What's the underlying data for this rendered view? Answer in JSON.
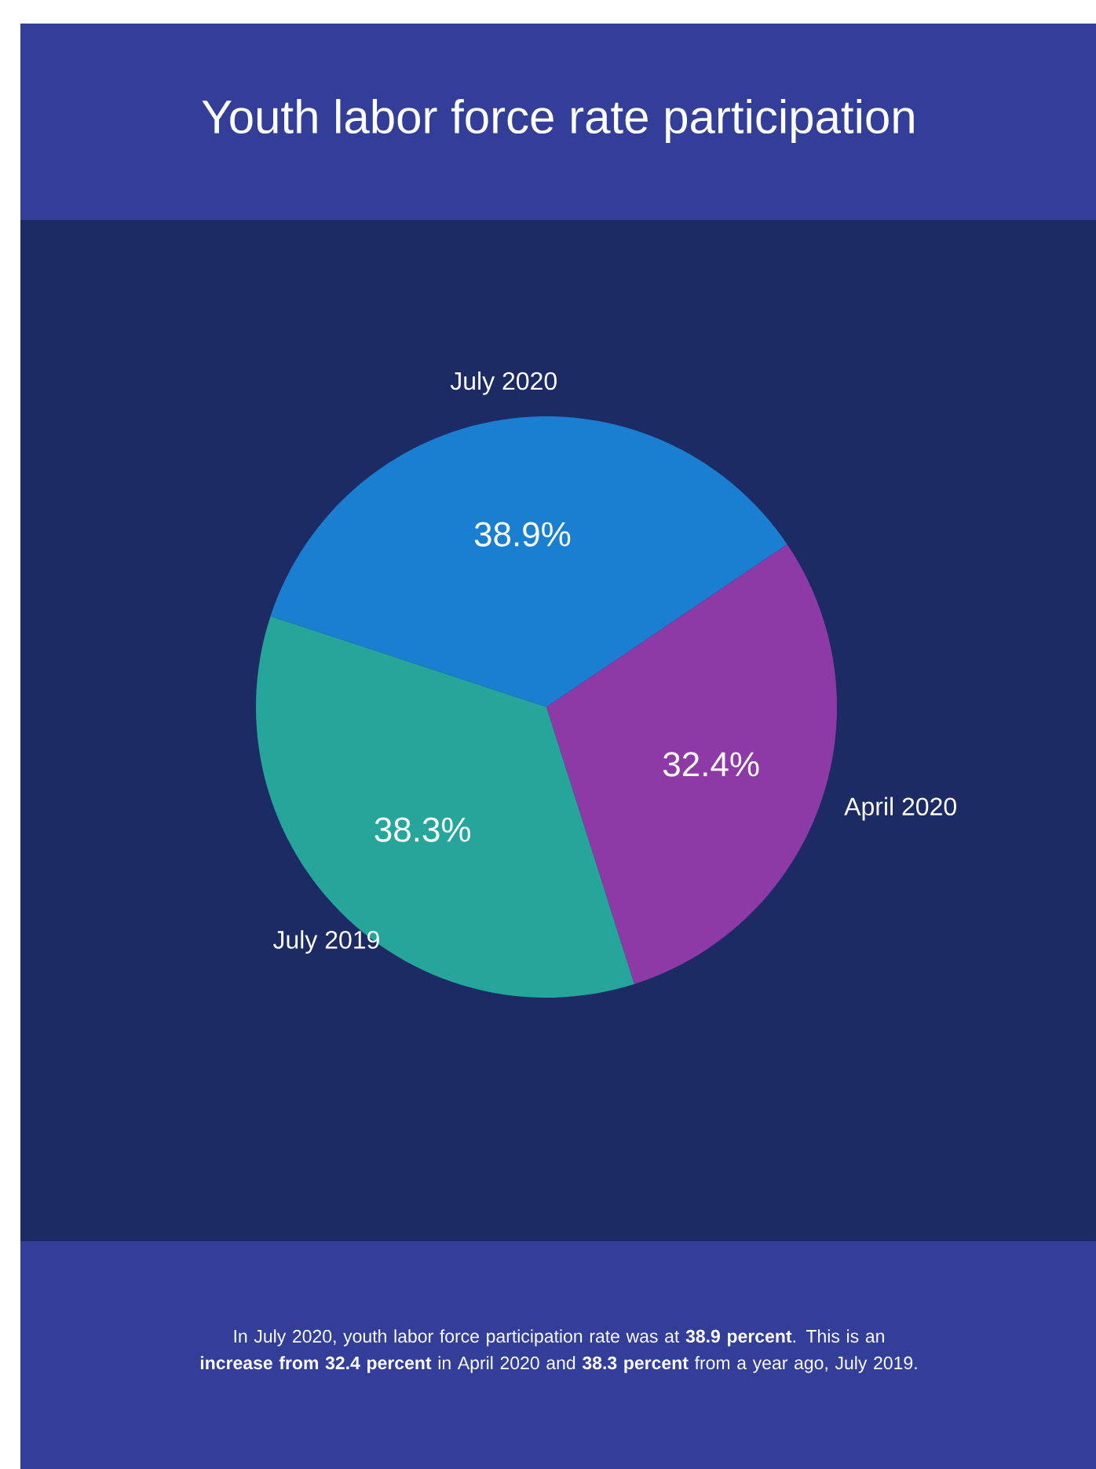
{
  "chart_data": {
    "type": "pie",
    "title": "Youth labor force rate participation",
    "categories": [
      "July 2020",
      "April 2020",
      "July 2019"
    ],
    "values": [
      38.9,
      32.4,
      38.3
    ],
    "colors": [
      "#1a7fd0",
      "#8e3aa6",
      "#26a69a"
    ],
    "value_labels": [
      "38.9%",
      "32.4%",
      "38.3%"
    ],
    "annotations": [
      "In July 2020, youth labor force participation rate was at **38.9 percent**. This is an **increase from 32.4 percent** in April 2020 and **38.3 percent** from a year ago, July 2019."
    ]
  }
}
